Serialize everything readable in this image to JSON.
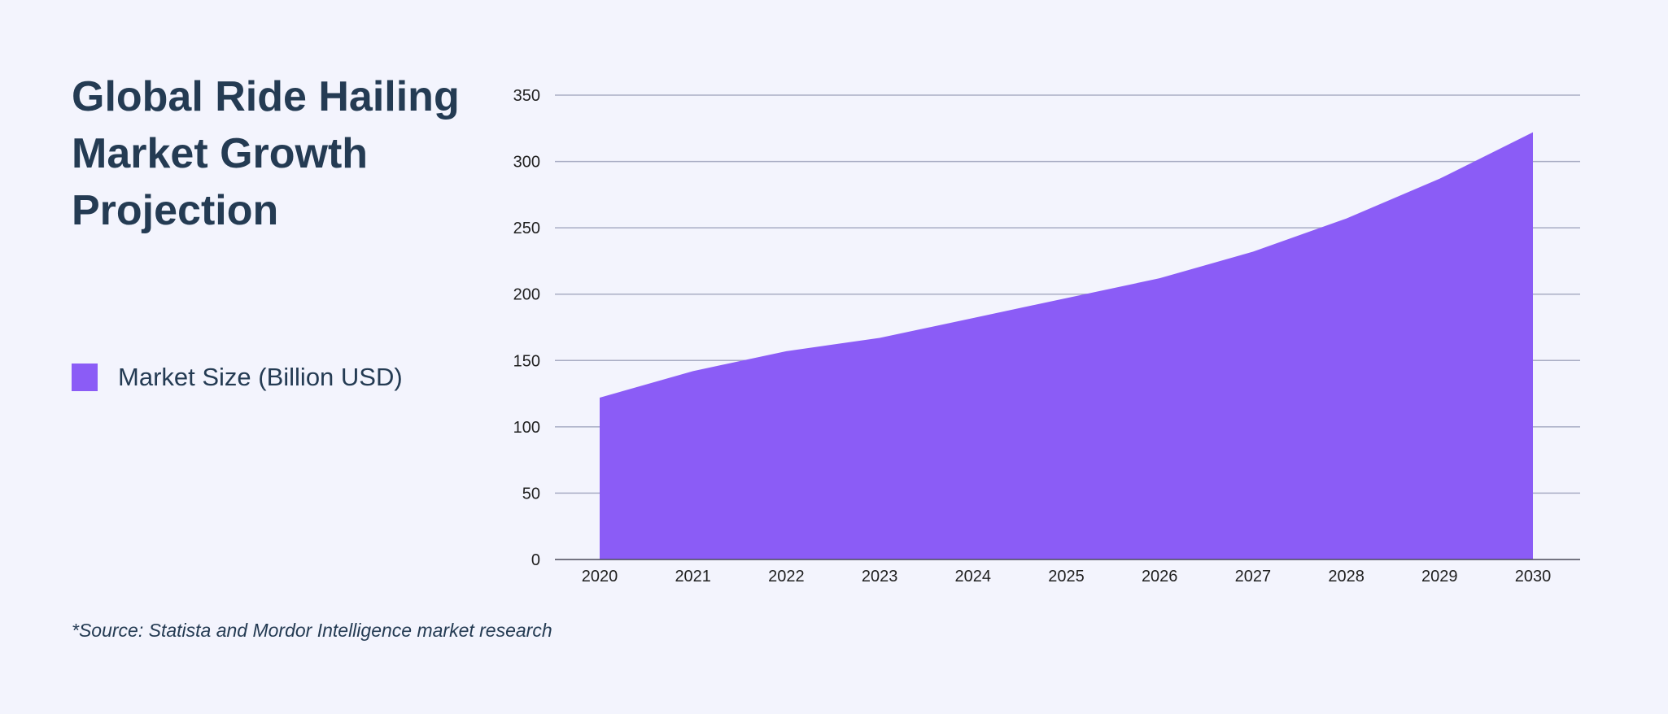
{
  "title": "Global Ride Hailing Market Growth Projection",
  "legend": {
    "label": "Market Size (Billion USD)"
  },
  "source_note": "*Source: Statista and Mordor Intelligence market research",
  "colors": {
    "series": "#8b5cf6",
    "grid": "#a9adc4",
    "axis": "#4a4a5a",
    "text": "#243b53",
    "background": "#f3f4fd"
  },
  "chart_data": {
    "type": "area",
    "x": [
      "2020",
      "2021",
      "2022",
      "2023",
      "2024",
      "2025",
      "2026",
      "2027",
      "2028",
      "2029",
      "2030"
    ],
    "series": [
      {
        "name": "Market Size (Billion USD)",
        "values": [
          122,
          142,
          157,
          167,
          182,
          197,
          212,
          232,
          257,
          287,
          322
        ]
      }
    ],
    "title": "Global Ride Hailing Market Growth Projection",
    "xlabel": "",
    "ylabel": "",
    "ylim": [
      0,
      350
    ],
    "yticks": [
      "0",
      "50",
      "100",
      "150",
      "200",
      "250",
      "300",
      "350"
    ],
    "grid": true,
    "legend_position": "left"
  }
}
